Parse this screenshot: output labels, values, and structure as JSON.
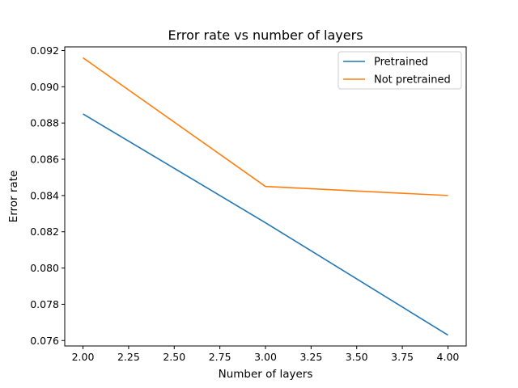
{
  "chart_data": {
    "type": "line",
    "title": "Error rate vs number of layers",
    "xlabel": "Number of layers",
    "ylabel": "Error rate",
    "x": [
      2,
      3,
      4
    ],
    "series": [
      {
        "name": "Pretrained",
        "values": [
          0.0885,
          0.0825,
          0.0763
        ],
        "color": "#1f77b4"
      },
      {
        "name": "Not pretrained",
        "values": [
          0.0916,
          0.0845,
          0.084
        ],
        "color": "#ff7f0e"
      }
    ],
    "xlim": [
      1.9,
      4.1
    ],
    "ylim": [
      0.0757,
      0.0922
    ],
    "xticks": [
      2.0,
      2.25,
      2.5,
      2.75,
      3.0,
      3.25,
      3.5,
      3.75,
      4.0
    ],
    "xtick_labels": [
      "2.00",
      "2.25",
      "2.50",
      "2.75",
      "3.00",
      "3.25",
      "3.50",
      "3.75",
      "4.00"
    ],
    "yticks": [
      0.076,
      0.078,
      0.08,
      0.082,
      0.084,
      0.086,
      0.088,
      0.09,
      0.092
    ],
    "ytick_labels": [
      "0.076",
      "0.078",
      "0.080",
      "0.082",
      "0.084",
      "0.086",
      "0.088",
      "0.090",
      "0.092"
    ],
    "grid": false,
    "legend_position": "top-right"
  }
}
